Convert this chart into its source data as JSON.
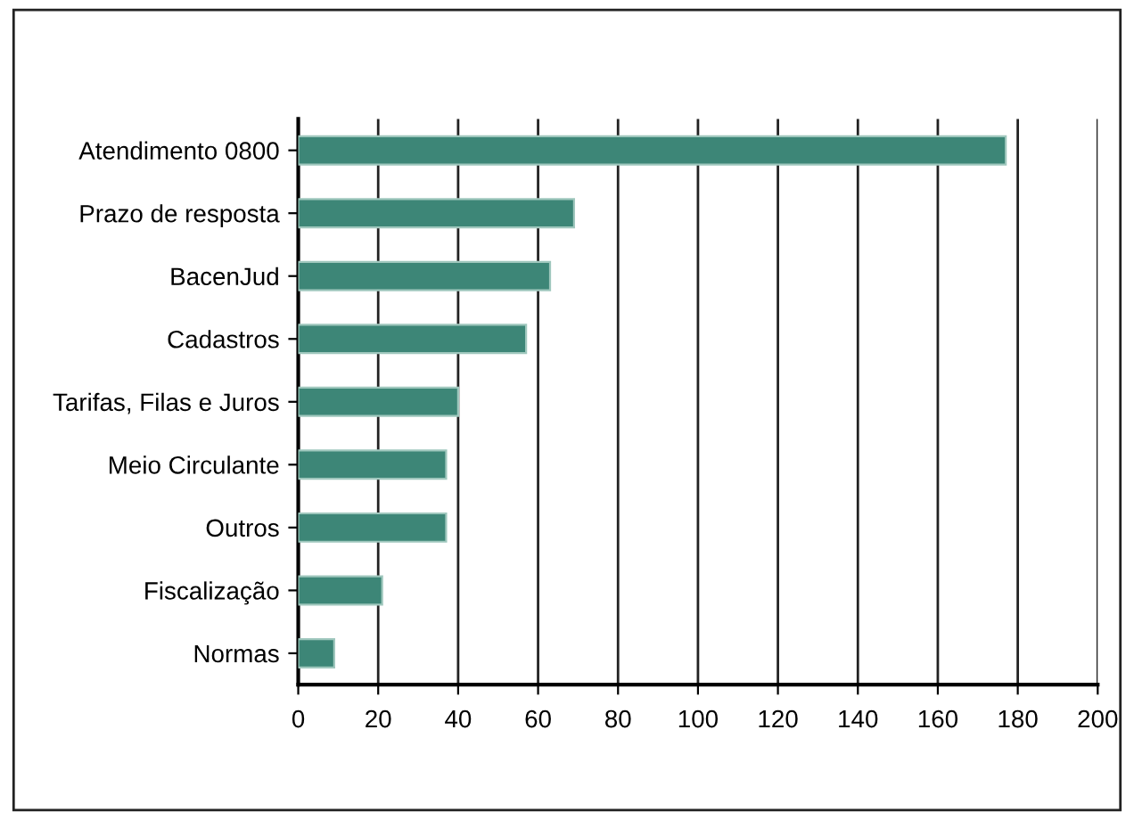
{
  "chart_data": {
    "type": "bar",
    "orientation": "horizontal",
    "categories": [
      "Atendimento 0800",
      "Prazo de resposta",
      "BacenJud",
      "Cadastros",
      "Tarifas, Filas e Juros",
      "Meio Circulante",
      "Outros",
      "Fiscalização",
      "Normas"
    ],
    "values": [
      177,
      69,
      63,
      57,
      40,
      37,
      37,
      21,
      9
    ],
    "color": "#3d8677",
    "xlim": [
      0,
      200
    ],
    "xticks": [
      0,
      20,
      40,
      60,
      80,
      100,
      120,
      140,
      160,
      180,
      200
    ],
    "grid": "x",
    "legend": false
  }
}
